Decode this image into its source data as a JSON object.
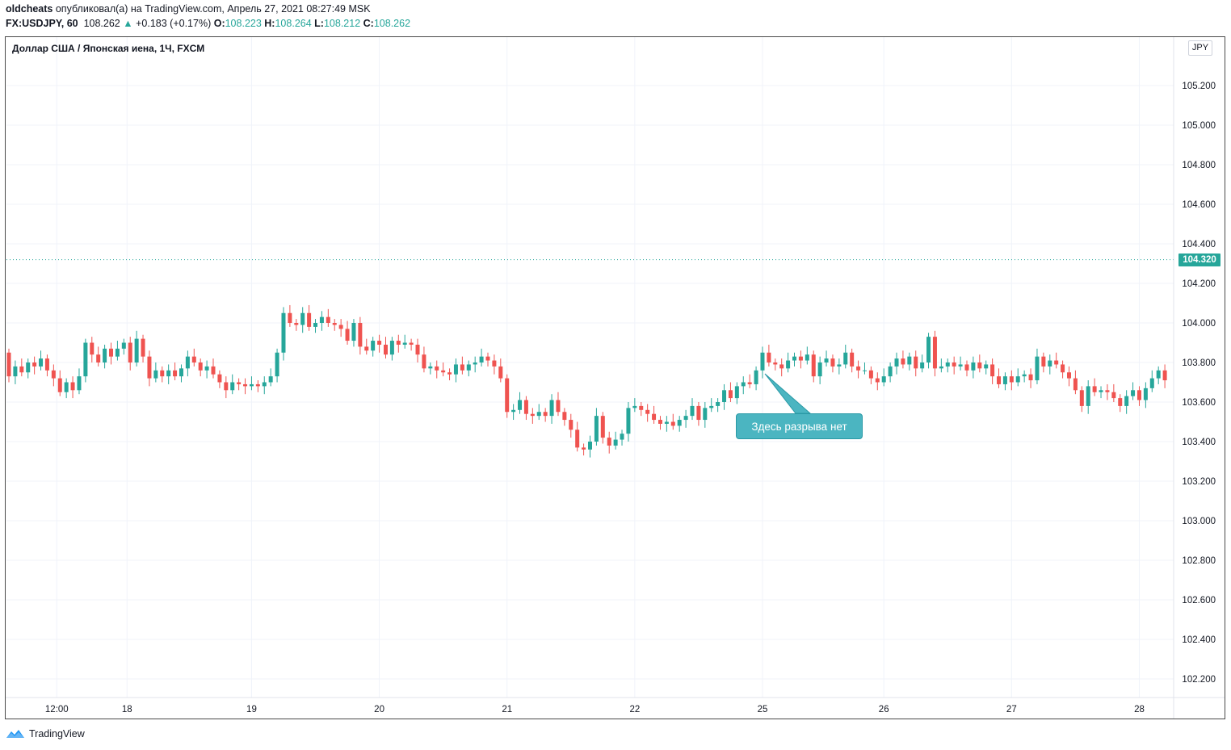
{
  "header": {
    "author": "oldcheats",
    "published_text": "опубликовал(а) на TradingView.com, Апрель 27, 2021 08:27:49 MSK",
    "symbol": "FX:USDJPY, 60",
    "last_price": "108.262",
    "change_arrow": "▲",
    "change": "+0.183 (+0.17%)",
    "o_label": "O:",
    "o_value": "108.223",
    "h_label": "H:",
    "h_value": "108.264",
    "l_label": "L:",
    "l_value": "108.212",
    "c_label": "C:",
    "c_value": "108.262"
  },
  "chart_title": "Доллар США / Японская иена, 1Ч, FXCM",
  "currency_badge": "JPY",
  "current_price_badge": "104.320",
  "annotation": "Здесь разрыва нет",
  "footer": {
    "brand": "TradingView",
    "logo_icon": "tradingview-logo-icon"
  },
  "colors": {
    "up": "#26a69a",
    "down": "#ef5350",
    "grid": "#f0f3fa",
    "callout": "#4bb5c1"
  },
  "chart_data": {
    "type": "candlestick",
    "symbol": "USDJPY",
    "timeframe": "1H",
    "y_ticks": [
      "105.200",
      "105.000",
      "104.800",
      "104.600",
      "104.400",
      "104.200",
      "104.000",
      "103.800",
      "103.600",
      "103.400",
      "103.200",
      "103.000",
      "102.800",
      "102.600",
      "102.400",
      "102.200"
    ],
    "ylim": [
      102.1,
      105.5
    ],
    "x_ticks": [
      {
        "label": "12:00",
        "idx": 7.5
      },
      {
        "label": "18",
        "idx": 18.5
      },
      {
        "label": "19",
        "idx": 38
      },
      {
        "label": "20",
        "idx": 58
      },
      {
        "label": "21",
        "idx": 78
      },
      {
        "label": "22",
        "idx": 98
      },
      {
        "label": "25",
        "idx": 118
      },
      {
        "label": "26",
        "idx": 137
      },
      {
        "label": "27",
        "idx": 157
      },
      {
        "label": "28",
        "idx": 177
      }
    ],
    "x_count": 183,
    "candles": [
      [
        103.85,
        103.73
      ],
      [
        103.73,
        103.78
      ],
      [
        103.78,
        103.75
      ],
      [
        103.75,
        103.8
      ],
      [
        103.8,
        103.78
      ],
      [
        103.78,
        103.82
      ],
      [
        103.82,
        103.76
      ],
      [
        103.76,
        103.72
      ],
      [
        103.72,
        103.65
      ],
      [
        103.65,
        103.7
      ],
      [
        103.7,
        103.66
      ],
      [
        103.66,
        103.73
      ],
      [
        103.73,
        103.9
      ],
      [
        103.9,
        103.84
      ],
      [
        103.84,
        103.8
      ],
      [
        103.8,
        103.87
      ],
      [
        103.87,
        103.83
      ],
      [
        103.83,
        103.87
      ],
      [
        103.87,
        103.9
      ],
      [
        103.9,
        103.8
      ],
      [
        103.8,
        103.92
      ],
      [
        103.92,
        103.83
      ],
      [
        103.83,
        103.72
      ],
      [
        103.72,
        103.76
      ],
      [
        103.76,
        103.73
      ],
      [
        103.73,
        103.76
      ],
      [
        103.76,
        103.73
      ],
      [
        103.73,
        103.77
      ],
      [
        103.77,
        103.83
      ],
      [
        103.83,
        103.8
      ],
      [
        103.8,
        103.76
      ],
      [
        103.76,
        103.78
      ],
      [
        103.78,
        103.74
      ],
      [
        103.74,
        103.7
      ],
      [
        103.7,
        103.66
      ],
      [
        103.66,
        103.7
      ],
      [
        103.7,
        103.69
      ],
      [
        103.69,
        103.68
      ],
      [
        103.68,
        103.69
      ],
      [
        103.69,
        103.68
      ],
      [
        103.68,
        103.7
      ],
      [
        103.7,
        103.73
      ],
      [
        103.73,
        103.85
      ],
      [
        103.85,
        104.05
      ],
      [
        104.05,
        104.0
      ],
      [
        104.0,
        103.99
      ],
      [
        103.99,
        104.05
      ],
      [
        104.05,
        103.98
      ],
      [
        103.98,
        104.0
      ],
      [
        104.0,
        104.03
      ],
      [
        104.03,
        104.0
      ],
      [
        104.0,
        103.99
      ],
      [
        103.99,
        103.97
      ],
      [
        103.97,
        103.91
      ],
      [
        103.91,
        104.0
      ],
      [
        104.0,
        103.88
      ],
      [
        103.88,
        103.86
      ],
      [
        103.86,
        103.91
      ],
      [
        103.91,
        103.89
      ],
      [
        103.89,
        103.84
      ],
      [
        103.84,
        103.91
      ],
      [
        103.91,
        103.89
      ],
      [
        103.89,
        103.9
      ],
      [
        103.9,
        103.89
      ],
      [
        103.89,
        103.84
      ],
      [
        103.84,
        103.77
      ],
      [
        103.77,
        103.78
      ],
      [
        103.78,
        103.76
      ],
      [
        103.76,
        103.75
      ],
      [
        103.75,
        103.74
      ],
      [
        103.74,
        103.79
      ],
      [
        103.79,
        103.76
      ],
      [
        103.76,
        103.79
      ],
      [
        103.79,
        103.8
      ],
      [
        103.8,
        103.83
      ],
      [
        103.83,
        103.81
      ],
      [
        103.81,
        103.78
      ],
      [
        103.78,
        103.72
      ],
      [
        103.72,
        103.55
      ],
      [
        103.55,
        103.56
      ],
      [
        103.56,
        103.61
      ],
      [
        103.61,
        103.54
      ],
      [
        103.54,
        103.53
      ],
      [
        103.53,
        103.55
      ],
      [
        103.55,
        103.53
      ],
      [
        103.53,
        103.61
      ],
      [
        103.61,
        103.55
      ],
      [
        103.55,
        103.51
      ],
      [
        103.51,
        103.46
      ],
      [
        103.46,
        103.37
      ],
      [
        103.37,
        103.36
      ],
      [
        103.36,
        103.4
      ],
      [
        103.4,
        103.53
      ],
      [
        103.53,
        103.42
      ],
      [
        103.42,
        103.38
      ],
      [
        103.38,
        103.41
      ],
      [
        103.41,
        103.44
      ],
      [
        103.44,
        103.57
      ],
      [
        103.57,
        103.58
      ],
      [
        103.58,
        103.56
      ],
      [
        103.56,
        103.54
      ],
      [
        103.54,
        103.51
      ],
      [
        103.51,
        103.49
      ],
      [
        103.49,
        103.5
      ],
      [
        103.5,
        103.48
      ],
      [
        103.48,
        103.51
      ],
      [
        103.51,
        103.53
      ],
      [
        103.53,
        103.58
      ],
      [
        103.58,
        103.51
      ],
      [
        103.51,
        103.57
      ],
      [
        103.57,
        103.58
      ],
      [
        103.58,
        103.6
      ],
      [
        103.6,
        103.66
      ],
      [
        103.66,
        103.62
      ],
      [
        103.62,
        103.68
      ],
      [
        103.68,
        103.7
      ],
      [
        103.7,
        103.69
      ],
      [
        103.69,
        103.76
      ],
      [
        103.76,
        103.85
      ],
      [
        103.85,
        103.8
      ],
      [
        103.8,
        103.79
      ],
      [
        103.79,
        103.77
      ],
      [
        103.77,
        103.81
      ],
      [
        103.81,
        103.83
      ],
      [
        103.83,
        103.81
      ],
      [
        103.81,
        103.84
      ],
      [
        103.84,
        103.73
      ],
      [
        103.73,
        103.8
      ],
      [
        103.8,
        103.82
      ],
      [
        103.82,
        103.78
      ],
      [
        103.78,
        103.79
      ],
      [
        103.79,
        103.85
      ],
      [
        103.85,
        103.78
      ],
      [
        103.78,
        103.76
      ],
      [
        103.76,
        103.76
      ],
      [
        103.76,
        103.72
      ],
      [
        103.72,
        103.7
      ],
      [
        103.7,
        103.73
      ],
      [
        103.73,
        103.78
      ],
      [
        103.78,
        103.82
      ],
      [
        103.82,
        103.79
      ],
      [
        103.79,
        103.83
      ],
      [
        103.83,
        103.77
      ],
      [
        103.77,
        103.8
      ],
      [
        103.8,
        103.93
      ],
      [
        103.93,
        103.77
      ],
      [
        103.77,
        103.78
      ],
      [
        103.78,
        103.8
      ],
      [
        103.8,
        103.78
      ],
      [
        103.78,
        103.79
      ],
      [
        103.79,
        103.76
      ],
      [
        103.76,
        103.8
      ],
      [
        103.8,
        103.77
      ],
      [
        103.77,
        103.79
      ],
      [
        103.79,
        103.73
      ],
      [
        103.73,
        103.69
      ],
      [
        103.69,
        103.73
      ],
      [
        103.73,
        103.7
      ],
      [
        103.7,
        103.73
      ],
      [
        103.73,
        103.74
      ],
      [
        103.74,
        103.71
      ],
      [
        103.71,
        103.83
      ],
      [
        103.83,
        103.78
      ],
      [
        103.78,
        103.81
      ],
      [
        103.81,
        103.79
      ],
      [
        103.79,
        103.75
      ],
      [
        103.75,
        103.72
      ],
      [
        103.72,
        103.66
      ],
      [
        103.66,
        103.58
      ],
      [
        103.58,
        103.68
      ],
      [
        103.68,
        103.65
      ],
      [
        103.65,
        103.66
      ],
      [
        103.66,
        103.65
      ],
      [
        103.65,
        103.62
      ],
      [
        103.62,
        103.58
      ],
      [
        103.58,
        103.63
      ],
      [
        103.63,
        103.66
      ],
      [
        103.66,
        103.61
      ],
      [
        103.61,
        103.67
      ],
      [
        103.67,
        103.72
      ],
      [
        103.72,
        103.76
      ],
      [
        103.76,
        103.71
      ]
    ]
  }
}
